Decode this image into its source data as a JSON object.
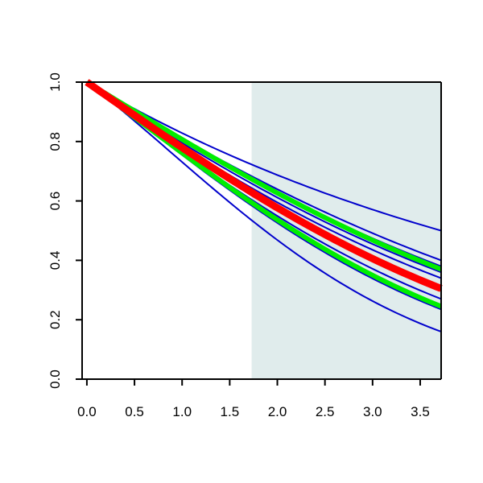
{
  "chart_data": {
    "type": "line",
    "title": "",
    "xlabel": "",
    "ylabel": "",
    "xlim": [
      -0.05,
      3.72
    ],
    "ylim": [
      0.0,
      1.0
    ],
    "x_ticks": [
      0.0,
      0.5,
      1.0,
      1.5,
      2.0,
      2.5,
      3.0,
      3.5
    ],
    "y_ticks": [
      0.0,
      0.2,
      0.4,
      0.6,
      0.8,
      1.0
    ],
    "x_tick_labels": [
      "0.0",
      "0.5",
      "1.0",
      "1.5",
      "2.0",
      "2.5",
      "3.0",
      "3.5"
    ],
    "y_tick_labels": [
      "0.0",
      "0.2",
      "0.4",
      "0.6",
      "0.8",
      "1.0"
    ],
    "shaded_region": {
      "x_start": 1.73,
      "x_end": 3.72,
      "color": "#e0ecec"
    },
    "grid": false,
    "legend": "none",
    "series": [
      {
        "color": "#0000cc",
        "width": "thin",
        "x": [
          0,
          1.75,
          3.72
        ],
        "y": [
          1.0,
          0.72,
          0.5
        ]
      },
      {
        "color": "#0000cc",
        "width": "thin",
        "x": [
          0,
          1.75,
          3.72
        ],
        "y": [
          1.0,
          0.68,
          0.4
        ]
      },
      {
        "color": "#0000cc",
        "width": "thin",
        "x": [
          0,
          1.75,
          3.72
        ],
        "y": [
          1.0,
          0.67,
          0.38
        ]
      },
      {
        "color": "#0000cc",
        "width": "thin",
        "x": [
          0,
          1.75,
          3.72
        ],
        "y": [
          1.0,
          0.655,
          0.36
        ]
      },
      {
        "color": "#0000cc",
        "width": "thin",
        "x": [
          0,
          1.75,
          3.72
        ],
        "y": [
          1.0,
          0.64,
          0.34
        ]
      },
      {
        "color": "#0000cc",
        "width": "thin",
        "x": [
          0,
          1.75,
          3.72
        ],
        "y": [
          1.0,
          0.6,
          0.27
        ]
      },
      {
        "color": "#0000cc",
        "width": "thin",
        "x": [
          0,
          1.75,
          3.72
        ],
        "y": [
          1.0,
          0.59,
          0.25
        ]
      },
      {
        "color": "#0000cc",
        "width": "thin",
        "x": [
          0,
          1.75,
          3.72
        ],
        "y": [
          1.0,
          0.58,
          0.235
        ]
      },
      {
        "color": "#0000cc",
        "width": "thin",
        "x": [
          0,
          1.75,
          3.72
        ],
        "y": [
          1.0,
          0.53,
          0.16
        ]
      },
      {
        "color": "#00ee00",
        "width": "thick",
        "x": [
          0,
          1.75,
          3.72
        ],
        "y": [
          1.0,
          0.67,
          0.37
        ]
      },
      {
        "color": "#00ee00",
        "width": "thick",
        "x": [
          0,
          1.75,
          3.72
        ],
        "y": [
          1.0,
          0.59,
          0.245
        ]
      },
      {
        "color": "#ff0000",
        "width": "heavy",
        "x": [
          0,
          1.75,
          3.72
        ],
        "y": [
          1.0,
          0.625,
          0.305
        ]
      }
    ]
  }
}
